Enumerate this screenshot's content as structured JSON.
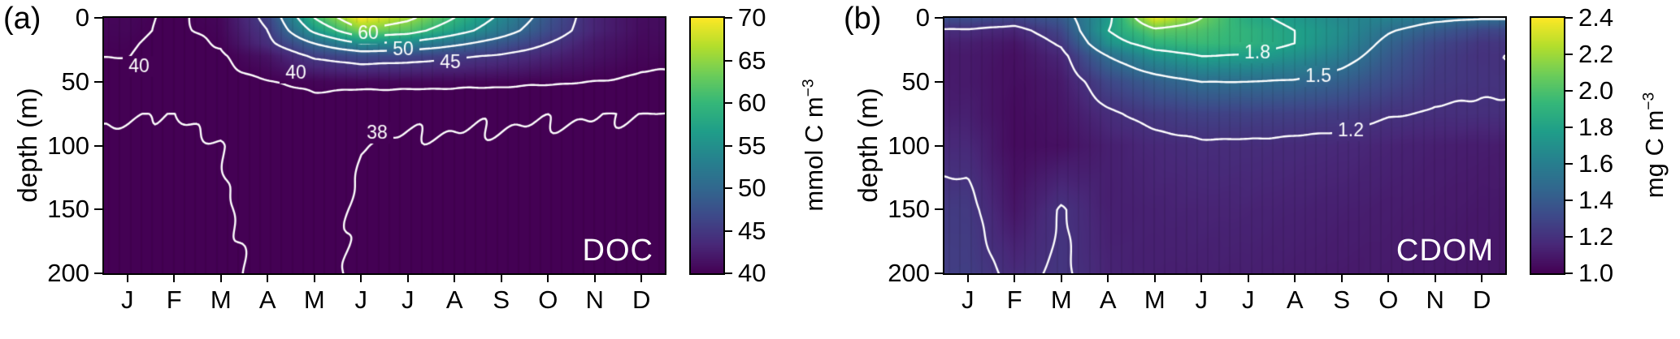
{
  "contour_color": "#ffffff",
  "colormap": [
    "#440154",
    "#482878",
    "#3e4989",
    "#31688e",
    "#26828e",
    "#1f9e89",
    "#35b779",
    "#6dcd59",
    "#b4de2c",
    "#fde725"
  ],
  "chart_data": [
    {
      "type": "filled_contour_heatmap",
      "id": "a",
      "panel_label": "(a)",
      "plot_label": "DOC",
      "x_axis": {
        "tick_labels": [
          "J",
          "F",
          "M",
          "A",
          "M",
          "J",
          "J",
          "A",
          "S",
          "O",
          "N",
          "D"
        ]
      },
      "y_axis": {
        "title": "depth (m)",
        "tick_values": [
          0,
          50,
          100,
          150,
          200
        ],
        "tick_labels": [
          "0",
          "50",
          "100",
          "150",
          "200"
        ],
        "range": [
          0,
          200
        ],
        "reversed": true
      },
      "colorbar": {
        "min": 40,
        "max": 70,
        "tick_values": [
          40,
          45,
          50,
          55,
          60,
          65,
          70
        ],
        "tick_labels": [
          "40",
          "45",
          "50",
          "55",
          "60",
          "65",
          "70"
        ],
        "unit_base": "mmol C m",
        "unit_exp": "−3"
      },
      "contour_levels": [
        38,
        40,
        45,
        50,
        55,
        60,
        65
      ],
      "contour_labels": [
        {
          "text": "40",
          "x": 0.25,
          "depth": 38
        },
        {
          "text": "40",
          "x": 3.6,
          "depth": 43
        },
        {
          "text": "38",
          "x": 5.35,
          "depth": 90
        },
        {
          "text": "45",
          "x": 6.9,
          "depth": 35
        },
        {
          "text": "50",
          "x": 5.9,
          "depth": 25
        },
        {
          "text": "60",
          "x": 5.15,
          "depth": 12
        }
      ],
      "grid": {
        "depths": [
          0,
          10,
          20,
          30,
          50,
          75,
          100,
          150,
          200
        ],
        "values": [
          [
            40.5,
            39.7,
            40.6,
            46.0,
            60.0,
            70.0,
            66.0,
            60.0,
            54.0,
            48.0,
            43.0,
            41.0
          ],
          [
            40.4,
            39.7,
            40.4,
            45.0,
            56.0,
            64.0,
            62.0,
            57.0,
            52.0,
            47.0,
            43.0,
            40.9
          ],
          [
            40.2,
            39.6,
            40.1,
            44.0,
            50.0,
            55.0,
            54.0,
            51.0,
            48.0,
            45.0,
            42.0,
            40.7
          ],
          [
            40.05,
            39.5,
            39.8,
            41.5,
            45.5,
            47.0,
            46.5,
            45.5,
            44.5,
            43.0,
            41.5,
            40.4
          ],
          [
            39.4,
            39.2,
            39.4,
            39.9,
            40.4,
            40.6,
            40.6,
            40.5,
            40.4,
            40.2,
            40.0,
            39.7
          ],
          [
            38.05,
            38.0,
            38.2,
            39.0,
            39.2,
            38.15,
            38.1,
            38.08,
            38.06,
            38.05,
            38.03,
            38.0
          ],
          [
            37.9,
            37.85,
            38.0,
            38.5,
            38.55,
            37.98,
            37.95,
            37.95,
            37.93,
            37.9,
            37.9,
            37.88
          ],
          [
            37.75,
            37.7,
            37.9,
            38.3,
            38.35,
            37.9,
            37.85,
            37.85,
            37.85,
            37.8,
            37.8,
            37.78
          ],
          [
            37.65,
            37.6,
            37.8,
            38.15,
            38.2,
            37.85,
            37.8,
            37.8,
            37.78,
            37.75,
            37.72,
            37.7
          ]
        ]
      }
    },
    {
      "type": "filled_contour_heatmap",
      "id": "b",
      "panel_label": "(b)",
      "plot_label": "CDOM",
      "x_axis": {
        "tick_labels": [
          "J",
          "F",
          "M",
          "A",
          "M",
          "J",
          "J",
          "A",
          "S",
          "O",
          "N",
          "D"
        ]
      },
      "y_axis": {
        "title": "depth (m)",
        "tick_values": [
          0,
          50,
          100,
          150,
          200
        ],
        "tick_labels": [
          "0",
          "50",
          "100",
          "150",
          "200"
        ],
        "range": [
          0,
          200
        ],
        "reversed": true
      },
      "colorbar": {
        "min": 1.0,
        "max": 2.4,
        "tick_values": [
          1.0,
          1.2,
          1.4,
          1.6,
          1.8,
          2.0,
          2.2,
          2.4
        ],
        "tick_labels": [
          "1.0",
          "1.2",
          "1.4",
          "1.6",
          "1.8",
          "2.0",
          "2.2",
          "2.4"
        ],
        "unit_base": "mg C m",
        "unit_exp": "−3"
      },
      "contour_levels": [
        1.2,
        1.5,
        1.8,
        2.1
      ],
      "contour_labels": [
        {
          "text": "1.2",
          "x": 8.2,
          "depth": 88
        },
        {
          "text": "1.5",
          "x": 7.5,
          "depth": 46
        },
        {
          "text": "1.8",
          "x": 6.2,
          "depth": 27
        }
      ],
      "grid": {
        "depths": [
          0,
          10,
          20,
          30,
          50,
          75,
          100,
          150,
          200
        ],
        "values": [
          [
            1.35,
            1.3,
            1.4,
            1.75,
            2.35,
            2.1,
            1.85,
            1.75,
            1.65,
            1.62,
            1.55,
            1.52
          ],
          [
            1.18,
            1.14,
            1.3,
            1.8,
            2.05,
            2.0,
            1.9,
            1.8,
            1.68,
            1.52,
            1.4,
            1.3
          ],
          [
            1.12,
            1.08,
            1.22,
            1.7,
            1.9,
            1.95,
            1.9,
            1.8,
            1.65,
            1.45,
            1.3,
            1.22
          ],
          [
            1.1,
            1.06,
            1.15,
            1.5,
            1.7,
            1.8,
            1.78,
            1.7,
            1.58,
            1.4,
            1.26,
            1.2
          ],
          [
            1.1,
            1.05,
            1.1,
            1.3,
            1.42,
            1.5,
            1.5,
            1.48,
            1.42,
            1.32,
            1.23,
            1.21
          ],
          [
            1.12,
            1.04,
            1.08,
            1.18,
            1.24,
            1.28,
            1.28,
            1.27,
            1.25,
            1.21,
            1.19,
            1.19
          ],
          [
            1.16,
            1.04,
            1.06,
            1.12,
            1.16,
            1.18,
            1.18,
            1.17,
            1.16,
            1.14,
            1.12,
            1.11
          ],
          [
            1.24,
            1.08,
            1.21,
            1.12,
            1.13,
            1.14,
            1.14,
            1.13,
            1.12,
            1.11,
            1.1,
            1.09
          ],
          [
            1.26,
            1.17,
            1.22,
            1.14,
            1.12,
            1.12,
            1.12,
            1.11,
            1.1,
            1.1,
            1.09,
            1.08
          ]
        ]
      }
    }
  ]
}
